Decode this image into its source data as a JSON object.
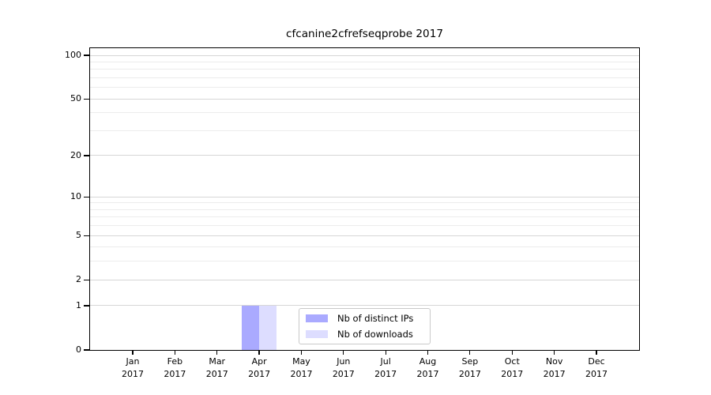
{
  "title": "cfcanine2cfrefseqprobe 2017",
  "chart_data": {
    "type": "bar",
    "title": "cfcanine2cfrefseqprobe 2017",
    "xlabel": "",
    "ylabel": "",
    "scale": "log1p",
    "grid": "horizontal",
    "legend_position": "bottom-center",
    "categories": [
      "Jan",
      "Feb",
      "Mar",
      "Apr",
      "May",
      "Jun",
      "Jul",
      "Aug",
      "Sep",
      "Oct",
      "Nov",
      "Dec"
    ],
    "category_year": "2017",
    "series": [
      {
        "name": "Nb of distinct IPs",
        "color": "#aaaaff",
        "values": [
          0,
          0,
          0,
          1,
          0,
          0,
          0,
          0,
          0,
          0,
          0,
          0
        ]
      },
      {
        "name": "Nb of downloads",
        "color": "#ddddff",
        "values": [
          0,
          0,
          0,
          1,
          0,
          0,
          0,
          0,
          0,
          0,
          0,
          0
        ]
      }
    ],
    "y_major_ticks": [
      0,
      1,
      2,
      5,
      10,
      20,
      50,
      100
    ],
    "y_minor_gridlines": [
      3,
      4,
      6,
      7,
      8,
      9,
      30,
      40,
      60,
      70,
      80,
      90
    ],
    "ylim": [
      0,
      112
    ]
  },
  "colors": {
    "background": "#ffffff",
    "spine": "#000000",
    "major_grid": "#d6d6d6",
    "minor_grid": "#ececec",
    "legend_border": "#c9c9c9",
    "bar_distinct_ips": "#aaaaff",
    "bar_downloads": "#ddddff",
    "text": "#000000"
  }
}
